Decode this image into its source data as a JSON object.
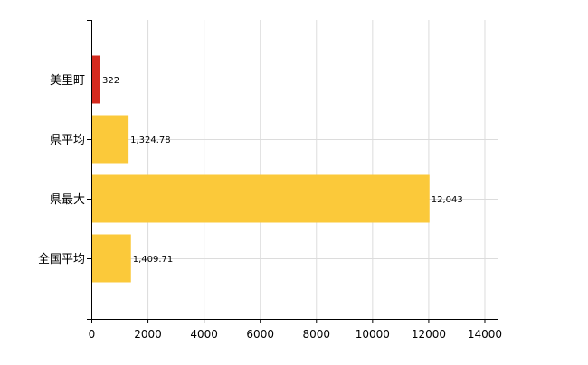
{
  "chart_data": {
    "type": "bar",
    "orientation": "horizontal",
    "title": "",
    "xlabel": "",
    "ylabel": "",
    "categories": [
      "美里町",
      "県平均",
      "県最大",
      "全国平均"
    ],
    "values": [
      322,
      1324.78,
      12043,
      1409.71
    ],
    "value_labels": [
      "322",
      "1,324.78",
      "12,043",
      "1,409.71"
    ],
    "bar_colors": [
      "#d42a1e",
      "#fbc93a",
      "#fbc93a",
      "#fbc93a"
    ],
    "xlim": [
      0,
      14500
    ],
    "xticks": [
      0,
      2000,
      4000,
      6000,
      8000,
      10000,
      12000,
      14000
    ],
    "xtick_labels": [
      "0",
      "2000",
      "4000",
      "6000",
      "8000",
      "10000",
      "12000",
      "14000"
    ],
    "grid": true,
    "legend": "none"
  }
}
